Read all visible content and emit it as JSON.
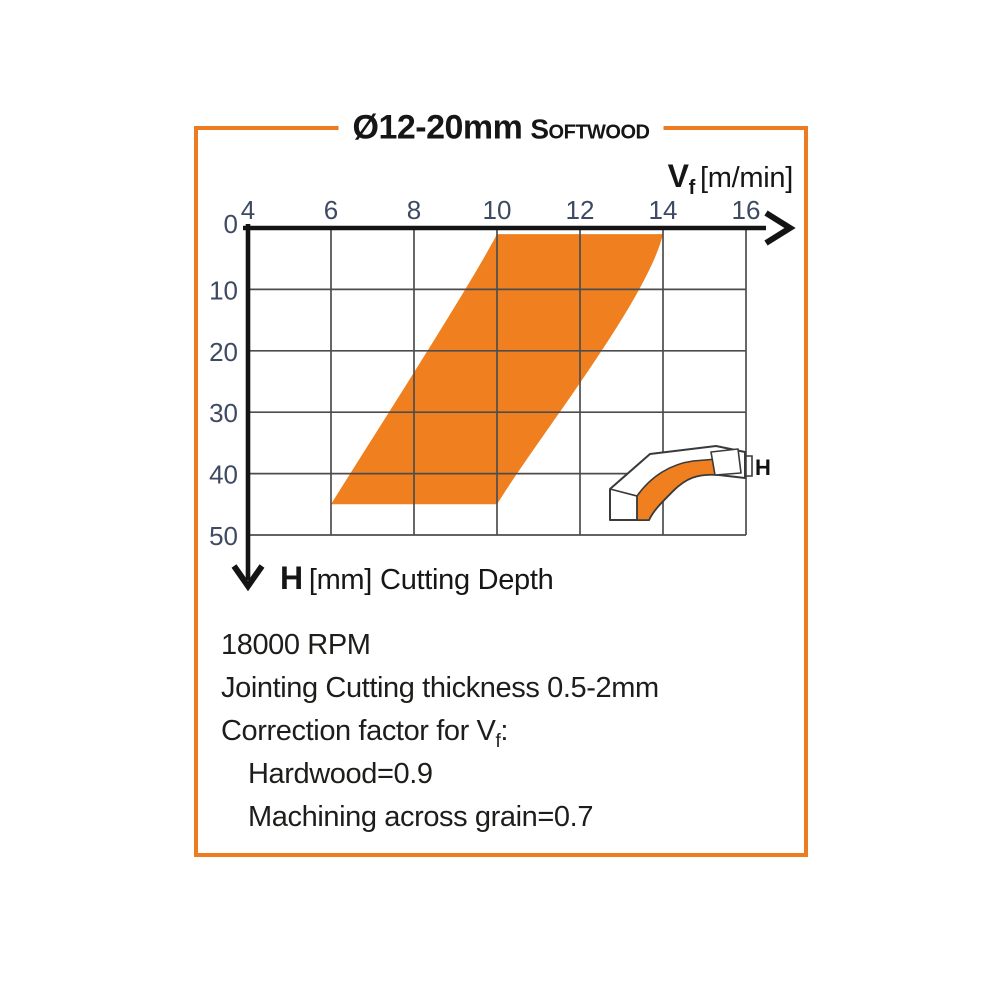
{
  "frame": {
    "color": "#EF7B21",
    "title": {
      "diameter": "Ø12-20mm",
      "material": "Softwood"
    }
  },
  "chart_data": {
    "type": "area",
    "title": "Ø12-20mm Softwood feed-rate chart",
    "x_axis": {
      "label_symbol": "V",
      "label_sub": "f",
      "label_unit": "[m/min]",
      "min": 4,
      "max": 16,
      "ticks": [
        4,
        6,
        8,
        10,
        12,
        14,
        16
      ]
    },
    "y_axis": {
      "label_symbol": "H",
      "label_unit": "[mm]",
      "label_text": "Cutting Depth",
      "min": 0,
      "max": 50,
      "inverted": true,
      "ticks": [
        0,
        10,
        20,
        30,
        40,
        50
      ]
    },
    "grid": true,
    "tick_label_color": "#3e4a63",
    "band": {
      "name": "recommended-feed-range",
      "color": "#F0801F",
      "h_top": 1,
      "h_bottom": 45,
      "vf_range_at_top": [
        10,
        14
      ],
      "vf_range_at_bottom": [
        6,
        10
      ]
    },
    "icon_label": "H"
  },
  "notes": {
    "lines": [
      {
        "text": "18000 RPM"
      },
      {
        "text": "Jointing Cutting thickness 0.5-2mm"
      },
      {
        "text": "Correction factor for V",
        "sub": "f",
        "suffix": ":"
      },
      {
        "text": "Hardwood=0.9",
        "indent": true
      },
      {
        "text": "Machining across grain=0.7",
        "indent": true
      }
    ]
  }
}
